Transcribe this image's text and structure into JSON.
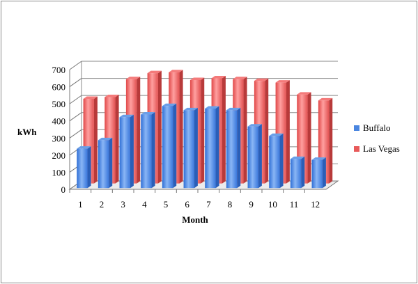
{
  "chart_data": {
    "type": "bar",
    "three_d": true,
    "xlabel": "Month",
    "ylabel": "kWh",
    "ylim": [
      0,
      700
    ],
    "yticks": [
      0,
      100,
      200,
      300,
      400,
      500,
      600,
      700
    ],
    "categories": [
      "1",
      "2",
      "3",
      "4",
      "5",
      "6",
      "7",
      "8",
      "9",
      "10",
      "11",
      "12"
    ],
    "grid": true,
    "legend": "right",
    "series": [
      {
        "name": "Buffalo",
        "color": "#4a86e0",
        "values": [
          230,
          280,
          415,
          430,
          480,
          455,
          465,
          455,
          360,
          305,
          170,
          165
        ]
      },
      {
        "name": "Las Vegas",
        "color": "#e85a5a",
        "values": [
          495,
          505,
          610,
          645,
          650,
          605,
          615,
          610,
          600,
          590,
          520,
          485
        ]
      }
    ]
  }
}
